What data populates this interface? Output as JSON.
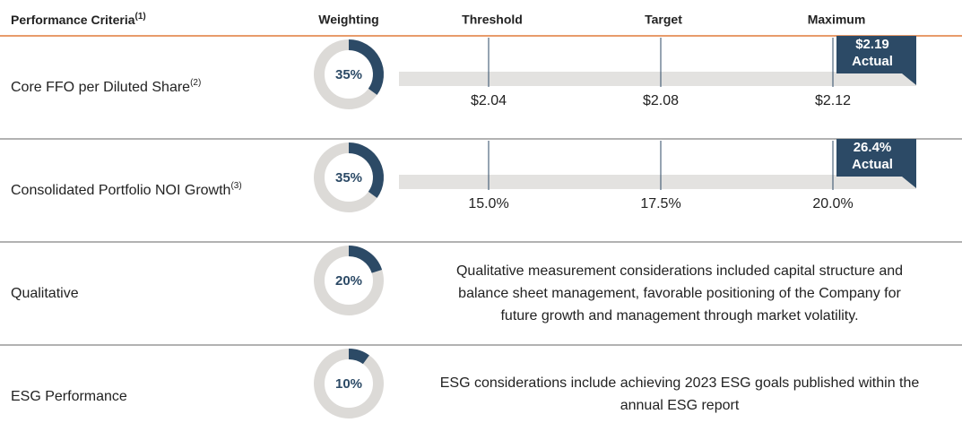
{
  "header": {
    "criteria": "Performance Criteria",
    "criteria_note": "(1)",
    "weighting": "Weighting",
    "threshold": "Threshold",
    "target": "Target",
    "maximum": "Maximum"
  },
  "rows": [
    {
      "label": "Core FFO per Diluted Share",
      "note": "(2)",
      "weighting": {
        "value": 35,
        "label": "35%"
      },
      "threshold": "$2.04",
      "target": "$2.08",
      "maximum": "$2.12",
      "actual": "$2.19",
      "actual_label": "Actual"
    },
    {
      "label": "Consolidated Portfolio NOI Growth",
      "note": "(3)",
      "weighting": {
        "value": 35,
        "label": "35%"
      },
      "threshold": "15.0%",
      "target": "17.5%",
      "maximum": "20.0%",
      "actual": "26.4%",
      "actual_label": "Actual"
    },
    {
      "label": "Qualitative",
      "weighting": {
        "value": 20,
        "label": "20%"
      },
      "description": [
        "Qualitative measurement considerations included capital structure and",
        "balance sheet management, favorable positioning of the Company for",
        "future growth and management through market volatility."
      ]
    },
    {
      "label": "ESG Performance",
      "weighting": {
        "value": 10,
        "label": "10%"
      },
      "description": [
        "ESG considerations include achieving 2023 ESG goals published within the",
        "annual ESG report"
      ]
    }
  ]
}
